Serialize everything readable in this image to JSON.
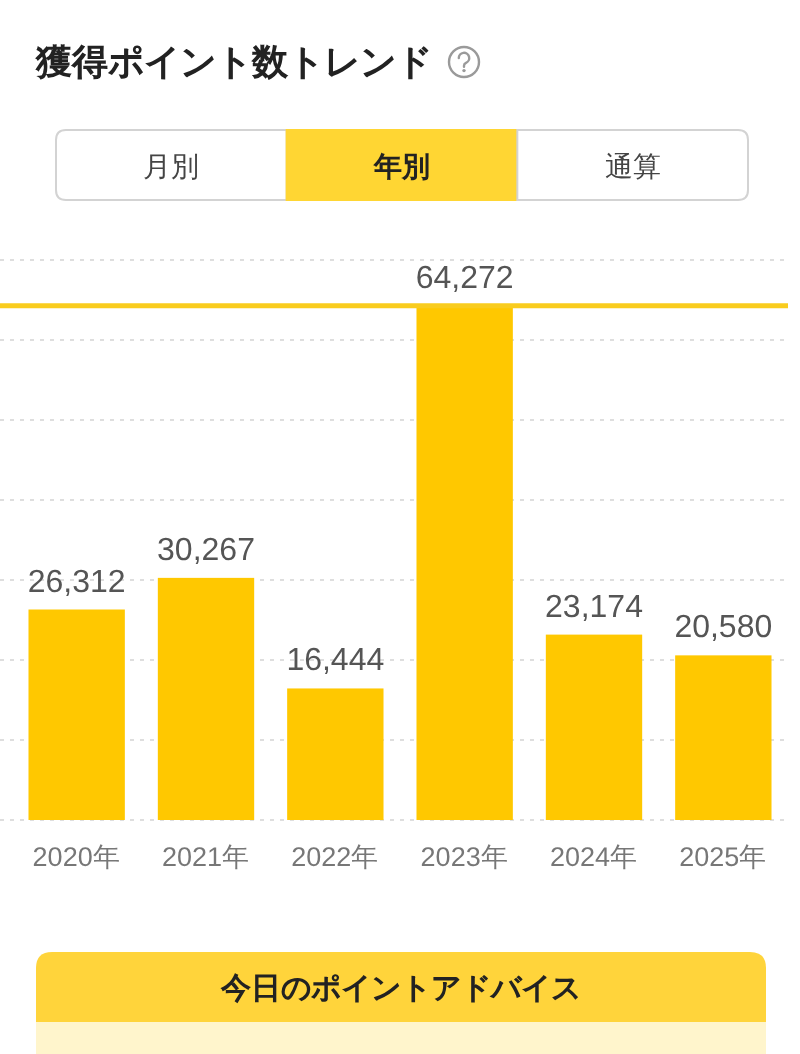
{
  "chart_data": {
    "type": "bar",
    "title": "獲得ポイント数トレンド",
    "categories": [
      "2020年",
      "2021年",
      "2022年",
      "2023年",
      "2024年",
      "2025年"
    ],
    "values": [
      26312,
      30267,
      16444,
      64272,
      23174,
      20580
    ],
    "value_labels": [
      "26,312",
      "30,267",
      "16,444",
      "64,272",
      "23,174",
      "20,580"
    ],
    "color": "#ffc800",
    "grid": "y",
    "ref_lines": [
      {
        "axis": "y",
        "value": 64272,
        "color": "#f9cc1e"
      }
    ],
    "annotations": [
      "月別",
      "年別",
      "通算",
      "今日のポイントアドバイス"
    ]
  }
}
